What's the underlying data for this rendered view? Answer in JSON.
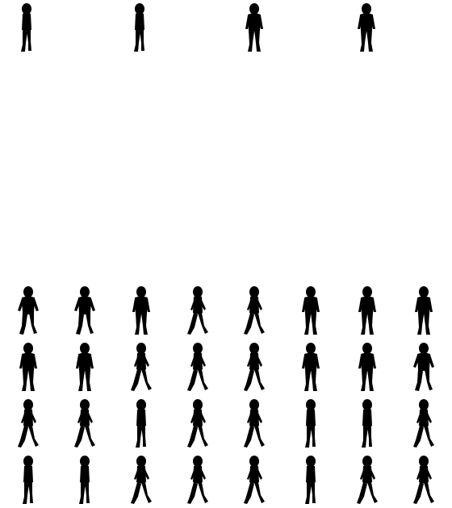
{
  "colors": {
    "background": "#ffffff",
    "silhouette": "#000000"
  },
  "top_row": {
    "figures": [
      {
        "icon": "walking-person-silhouette-icon",
        "pose": "standing-side"
      },
      {
        "icon": "walking-person-silhouette-icon",
        "pose": "standing-side"
      },
      {
        "icon": "walking-person-silhouette-icon",
        "pose": "standing-front"
      },
      {
        "icon": "walking-person-silhouette-icon",
        "pose": "standing-front"
      }
    ]
  },
  "grid": {
    "rows": [
      {
        "poses": [
          "stride-front",
          "stride-front",
          "stand-front",
          "stride-side",
          "stride-side",
          "stand-front",
          "stand-front",
          "stand-front"
        ]
      },
      {
        "poses": [
          "stand-front",
          "stand-front",
          "stride-side",
          "stride-side",
          "stride-side",
          "stand-front",
          "stand-front",
          "stride-front"
        ]
      },
      {
        "poses": [
          "stride-side",
          "stride-side",
          "stand-side",
          "stride-side",
          "stride-side",
          "stand-side",
          "stand-side",
          "stride-side"
        ]
      },
      {
        "poses": [
          "stand-side",
          "stand-side",
          "stride-side",
          "stride-side",
          "stride-side",
          "stand-side",
          "stride-side",
          "stride-side"
        ]
      }
    ]
  }
}
